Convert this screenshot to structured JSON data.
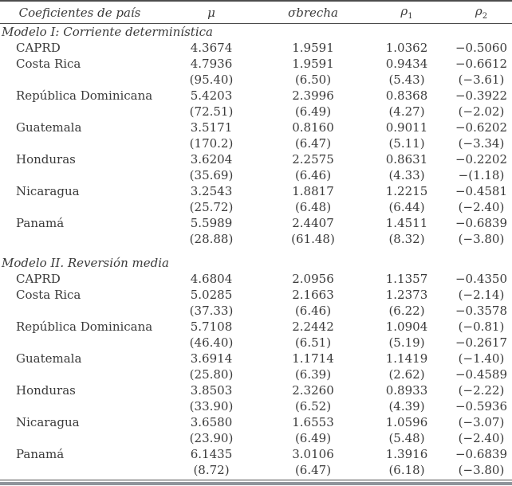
{
  "table": {
    "headers": [
      {
        "text": "Coeficientes de país"
      },
      {
        "text": "μ"
      },
      {
        "text": "σbrecha"
      },
      {
        "text": "ρ",
        "sub": "1"
      },
      {
        "text": "ρ",
        "sub": "2"
      }
    ],
    "sections": [
      {
        "title": "Modelo I: Corriente determinística",
        "rows": [
          {
            "country": "CAPRD",
            "values": [
              "4.3674",
              "1.9591",
              "1.0362",
              "−0.5060"
            ],
            "tstats": null
          },
          {
            "country": "Costa Rica",
            "values": [
              "4.7936",
              "1.9591",
              "0.9434",
              "−0.6612"
            ],
            "tstats": [
              "(95.40)",
              "(6.50)",
              "(5.43)",
              "(−3.61)"
            ]
          },
          {
            "country": "República Dominicana",
            "values": [
              "5.4203",
              "2.3996",
              "0.8368",
              "−0.3922"
            ],
            "tstats": [
              "(72.51)",
              "(6.49)",
              "(4.27)",
              "(−2.02)"
            ]
          },
          {
            "country": "Guatemala",
            "values": [
              "3.5171",
              "0.8160",
              "0.9011",
              "−0.6202"
            ],
            "tstats": [
              "(170.2)",
              "(6.47)",
              "(5.11)",
              "(−3.34)"
            ]
          },
          {
            "country": "Honduras",
            "values": [
              "3.6204",
              "2.2575",
              "0.8631",
              "−0.2202"
            ],
            "tstats": [
              "(35.69)",
              "(6.46)",
              "(4.33)",
              "−(1.18)"
            ]
          },
          {
            "country": "Nicaragua",
            "values": [
              "3.2543",
              "1.8817",
              "1.2215",
              "−0.4581"
            ],
            "tstats": [
              "(25.72)",
              "(6.48)",
              "(6.44)",
              "(−2.40)"
            ]
          },
          {
            "country": "Panamá",
            "values": [
              "5.5989",
              "2.4407",
              "1.4511",
              "−0.6839"
            ],
            "tstats": [
              "(28.88)",
              "(61.48)",
              "(8.32)",
              "(−3.80)"
            ]
          }
        ]
      },
      {
        "title": "Modelo II. Reversión media",
        "rows": [
          {
            "country": "CAPRD",
            "values": [
              "4.6804",
              "2.0956",
              "1.1357",
              "−0.4350"
            ],
            "tstats": null
          },
          {
            "country": "Costa Rica",
            "values": [
              "5.0285",
              "2.1663",
              "1.2373",
              "(−2.14)"
            ],
            "tstats": [
              "(37.33)",
              "(6.46)",
              "(6.22)",
              "−0.3578"
            ]
          },
          {
            "country": "República Dominicana",
            "values": [
              "5.7108",
              "2.2442",
              "1.0904",
              "(−0.81)"
            ],
            "tstats": [
              "(46.40)",
              "(6.51)",
              "(5.19)",
              "−0.2617"
            ]
          },
          {
            "country": "Guatemala",
            "values": [
              "3.6914",
              "1.1714",
              "1.1419",
              "(−1.40)"
            ],
            "tstats": [
              "(25.80)",
              "(6.39)",
              "(2.62)",
              "−0.4589"
            ]
          },
          {
            "country": "Honduras",
            "values": [
              "3.8503",
              "2.3260",
              "0.8933",
              "(−2.22)"
            ],
            "tstats": [
              "(33.90)",
              "(6.52)",
              "(4.39)",
              "−0.5936"
            ]
          },
          {
            "country": "Nicaragua",
            "values": [
              "3.6580",
              "1.6553",
              "1.0596",
              "(−3.07)"
            ],
            "tstats": [
              "(23.90)",
              "(6.49)",
              "(5.48)",
              "(−2.40)"
            ]
          },
          {
            "country": "Panamá",
            "values": [
              "6.1435",
              "3.0106",
              "1.3916",
              "−0.6839"
            ],
            "tstats": [
              "(8.72)",
              "(6.47)",
              "(6.18)",
              "(−3.80)"
            ]
          }
        ]
      }
    ]
  }
}
